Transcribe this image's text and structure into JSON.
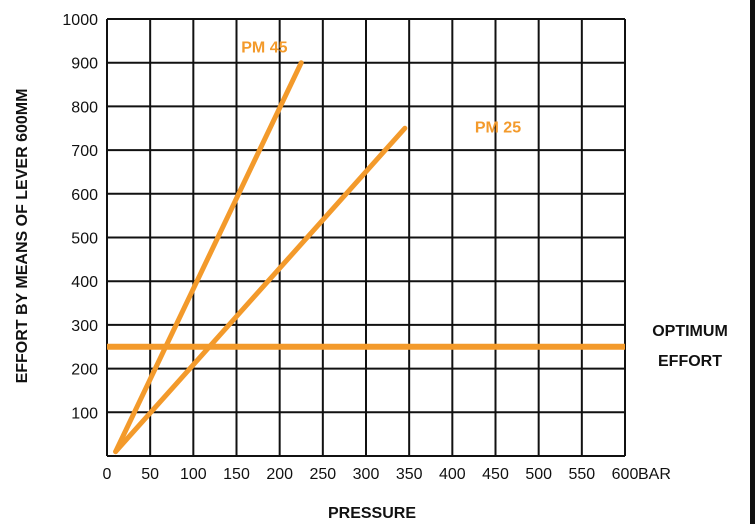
{
  "chart_data": {
    "type": "line",
    "title": "",
    "xlabel": "PRESSURE",
    "ylabel": "EFFORT BY MEANS OF LEVER 600MM",
    "x_unit": "BAR",
    "xlim": [
      0,
      600
    ],
    "ylim": [
      0,
      1000
    ],
    "x_ticks": [
      0,
      50,
      100,
      150,
      200,
      250,
      300,
      350,
      400,
      450,
      500,
      550,
      600
    ],
    "y_ticks": [
      100,
      200,
      300,
      400,
      500,
      600,
      700,
      800,
      900,
      1000
    ],
    "grid": true,
    "series": [
      {
        "name": "PM 45",
        "x": [
          10,
          225
        ],
        "y": [
          10,
          900
        ]
      },
      {
        "name": "PM 25",
        "x": [
          10,
          345
        ],
        "y": [
          10,
          750
        ]
      }
    ],
    "reference_lines": [
      {
        "label_lines": [
          "OPTIMUM",
          "EFFORT"
        ],
        "y": 250
      }
    ],
    "colors": {
      "series": "#F39A2B",
      "grid": "#111111",
      "text": "#111111"
    }
  }
}
